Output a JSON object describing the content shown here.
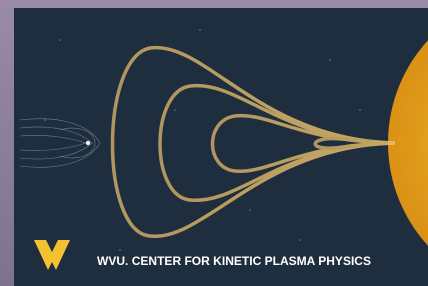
{
  "banner": {
    "text": "WVU. CENTER FOR KINETIC PLASMA PHYSICS"
  }
}
